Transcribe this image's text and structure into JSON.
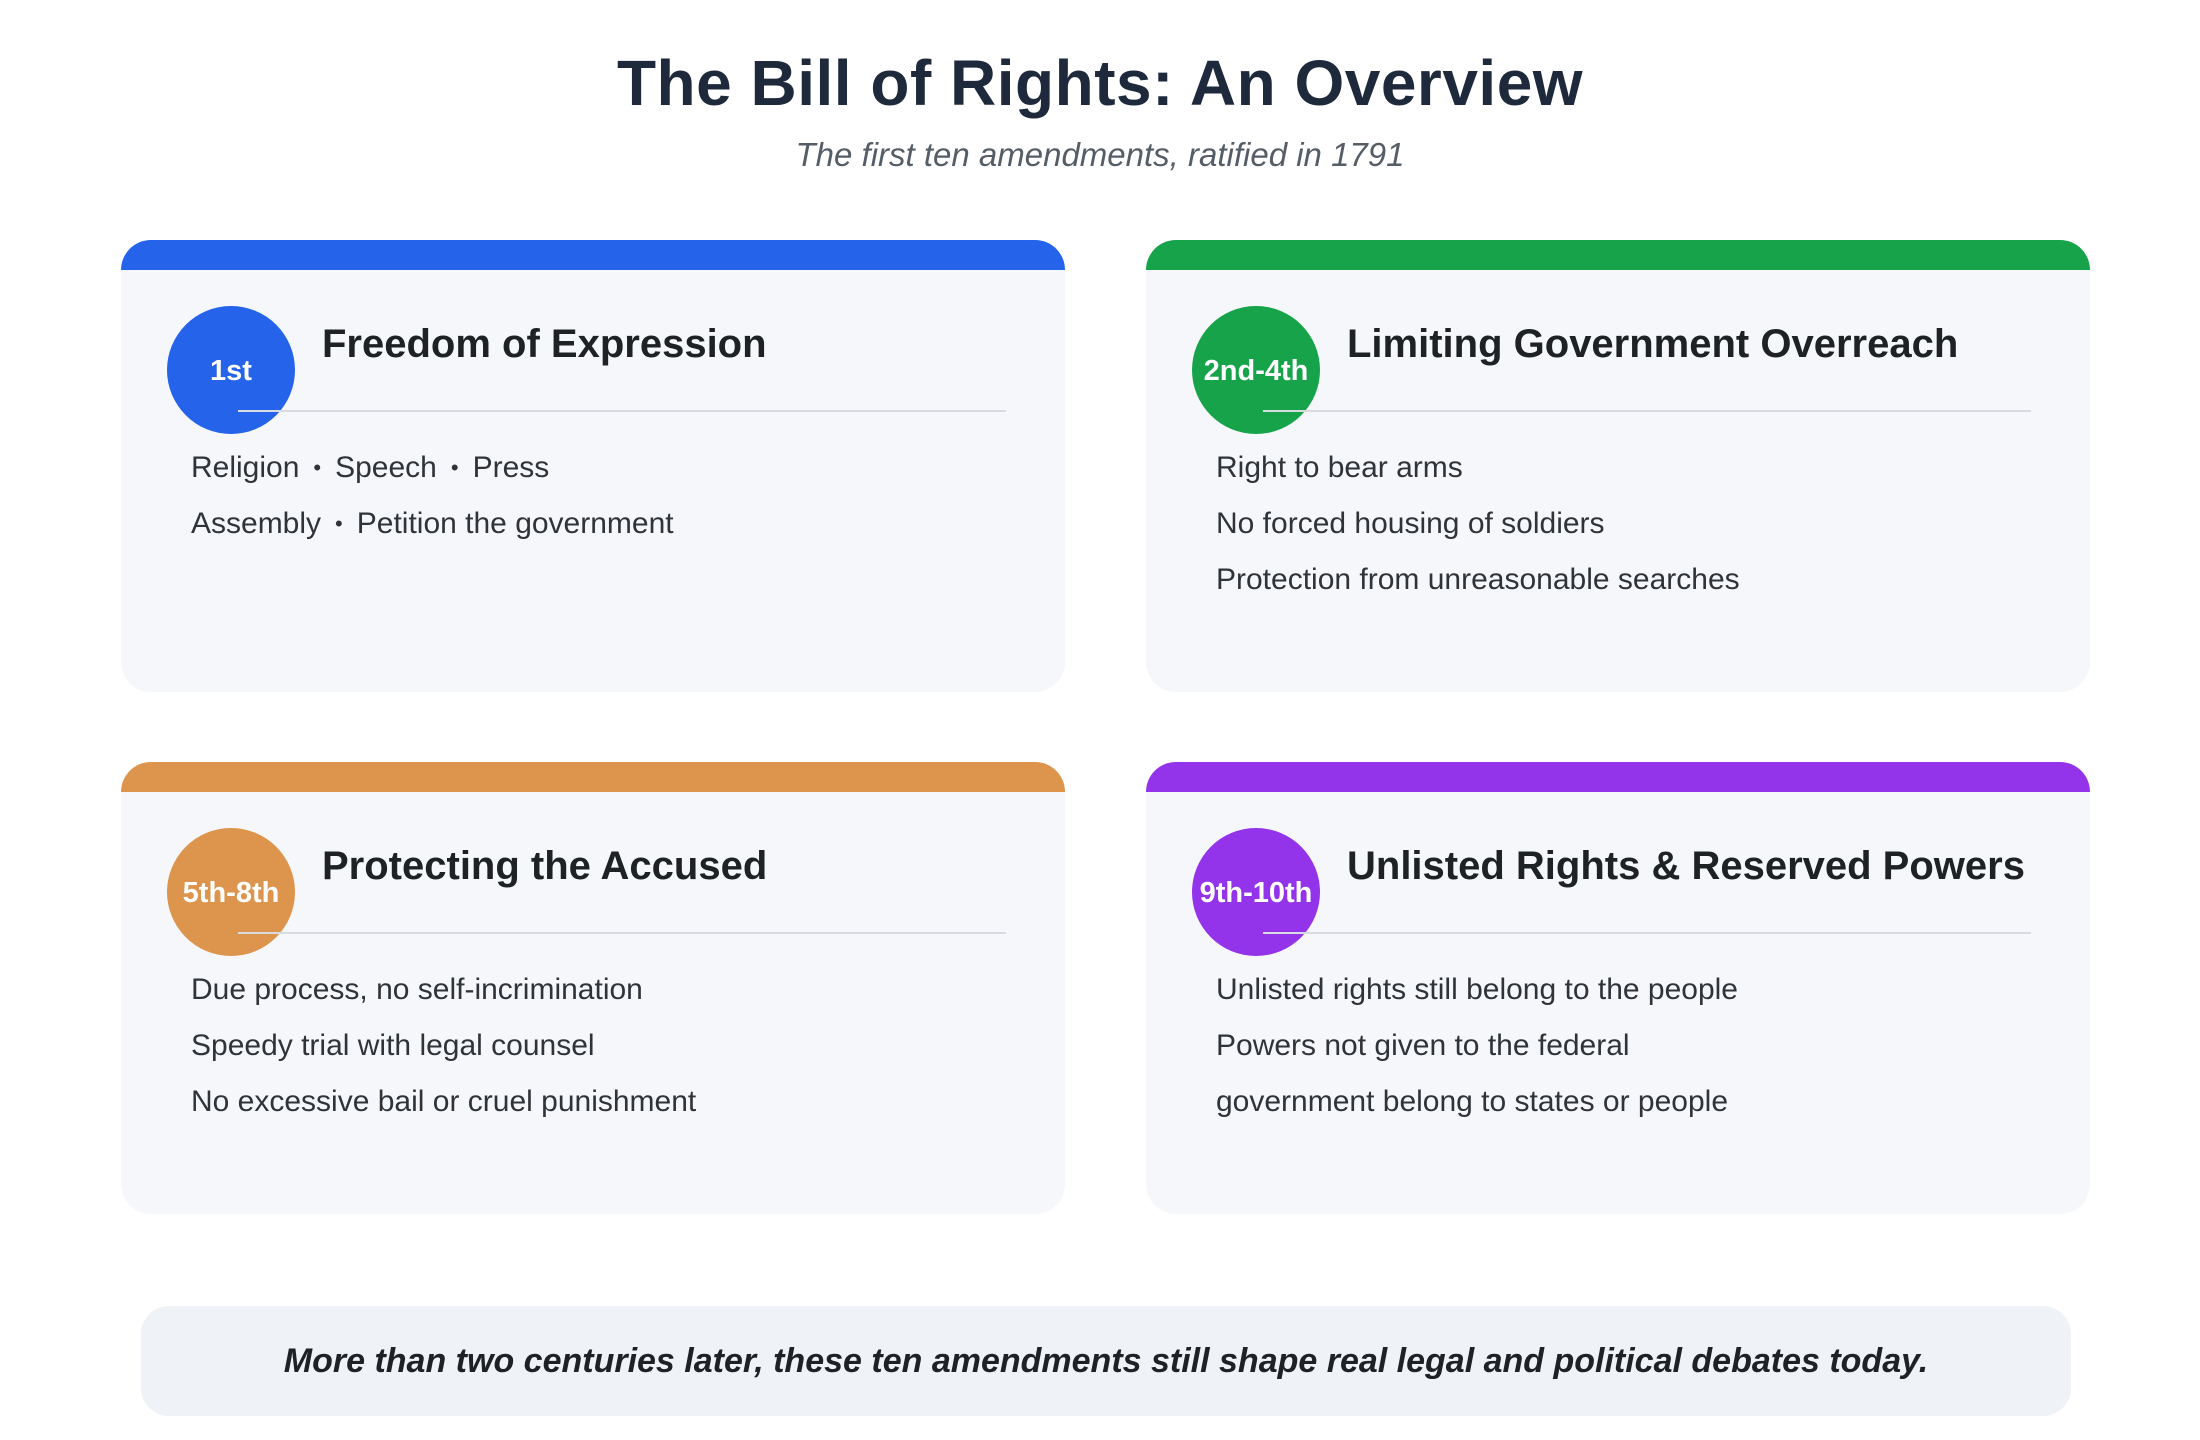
{
  "title": "The Bill of Rights: An Overview",
  "subtitle": "The first ten amendments, ratified in 1791",
  "cards": [
    {
      "badge": "1st",
      "title": "Freedom of Expression",
      "color": "#2563eb",
      "lines": [
        [
          "Religion",
          "Speech",
          "Press"
        ],
        [
          "Assembly",
          "Petition the government"
        ]
      ]
    },
    {
      "badge": "2nd-4th",
      "title": "Limiting Government Overreach",
      "color": "#16a34a",
      "lines": [
        [
          "Right to bear arms"
        ],
        [
          "No forced housing of soldiers"
        ],
        [
          "Protection from unreasonable searches"
        ]
      ]
    },
    {
      "badge": "5th-8th",
      "title": "Protecting the Accused",
      "color": "#dd944d",
      "lines": [
        [
          "Due process, no self-incrimination"
        ],
        [
          "Speedy trial with legal counsel"
        ],
        [
          "No excessive bail or cruel punishment"
        ]
      ]
    },
    {
      "badge": "9th-10th",
      "title": "Unlisted Rights & Reserved Powers",
      "color": "#9333ea",
      "lines": [
        [
          "Unlisted rights still belong to the people"
        ],
        [
          "Powers not given to the federal"
        ],
        [
          "government belong to states or people"
        ]
      ]
    }
  ],
  "separator": "•",
  "footer": "More than two centuries later, these ten amendments still shape real legal and political debates today."
}
